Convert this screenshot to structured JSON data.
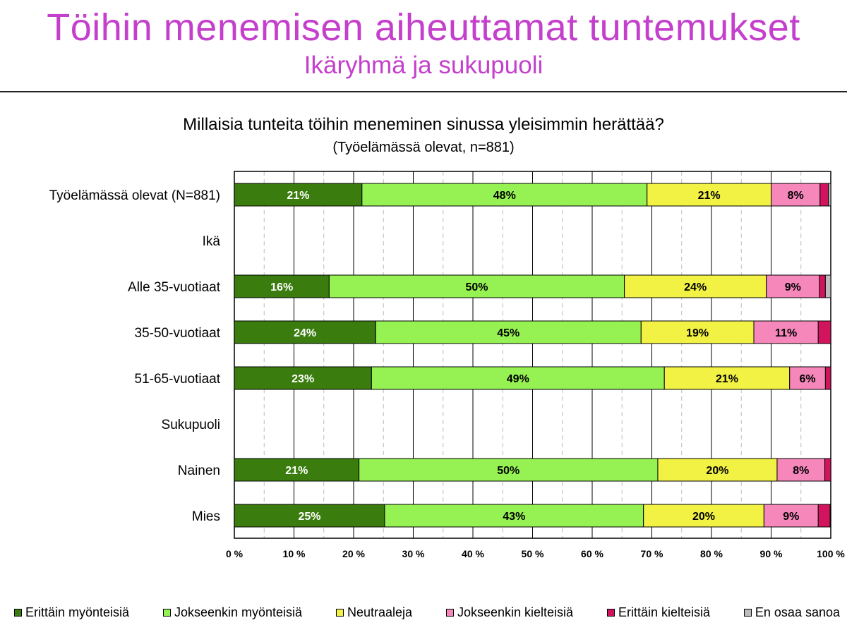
{
  "slide": {
    "title": "Töihin menemisen aiheuttamat  tuntemukset",
    "subtitle": "Ikäryhmä ja sukupuoli"
  },
  "chart_data": {
    "type": "bar",
    "orientation": "horizontal",
    "stacked": "percent",
    "title": "Millaisia tunteita töihin meneminen sinussa yleisimmin herättää?",
    "subtitle": "(Työelämässä olevat, n=881)",
    "xlabel": "",
    "ylabel": "",
    "xlim": [
      0,
      100
    ],
    "x_ticks": [
      "0 %",
      "10 %",
      "20 %",
      "30 %",
      "40 %",
      "50 %",
      "60 %",
      "70 %",
      "80 %",
      "90 %",
      "100 %"
    ],
    "grid": "vertical major solid, minor dashed",
    "legend_position": "bottom",
    "categories": [
      "Työelämässä olevat (N=881)",
      "Ikä",
      "Alle 35-vuotiaat",
      "35-50-vuotiaat",
      "51-65-vuotiaat",
      "Sukupuoli",
      "Nainen",
      "Mies"
    ],
    "series": [
      {
        "name": "Erittäin myönteisiä",
        "color": "#3a7d0e",
        "values": [
          21.4,
          null,
          15.9,
          23.7,
          23.0,
          null,
          20.9,
          25.2
        ]
      },
      {
        "name": "Jokseenkin myönteisiä",
        "color": "#96f252",
        "values": [
          47.8,
          null,
          49.5,
          44.5,
          49.1,
          null,
          50.1,
          43.4
        ]
      },
      {
        "name": "Neutraaleja",
        "color": "#f2f245",
        "values": [
          20.8,
          null,
          23.8,
          18.9,
          21.0,
          null,
          20.0,
          20.2
        ]
      },
      {
        "name": "Jokseenkin kielteisiä",
        "color": "#f587bb",
        "values": [
          8.2,
          null,
          8.9,
          10.8,
          6.0,
          null,
          8.0,
          9.1
        ]
      },
      {
        "name": "Erittäin kielteisiä",
        "color": "#d2135d",
        "values": [
          1.4,
          null,
          1.0,
          2.1,
          0.9,
          null,
          1.0,
          2.0
        ]
      },
      {
        "name": "En osaa sanoa",
        "color": "#bdbdbd",
        "values": [
          0.4,
          null,
          0.9,
          0.0,
          0.0,
          null,
          0.0,
          0.1
        ]
      }
    ],
    "data_labels": [
      [
        "21%",
        "48%",
        "21%",
        "8%",
        "",
        ""
      ],
      [
        "",
        "",
        "",
        "",
        "",
        ""
      ],
      [
        "16%",
        "50%",
        "24%",
        "9%",
        "",
        ""
      ],
      [
        "24%",
        "45%",
        "19%",
        "11%",
        "",
        ""
      ],
      [
        "23%",
        "49%",
        "21%",
        "6%",
        "",
        ""
      ],
      [
        "",
        "",
        "",
        "",
        "",
        ""
      ],
      [
        "21%",
        "50%",
        "20%",
        "8%",
        "",
        ""
      ],
      [
        "25%",
        "43%",
        "20%",
        "9%",
        "",
        ""
      ]
    ]
  }
}
